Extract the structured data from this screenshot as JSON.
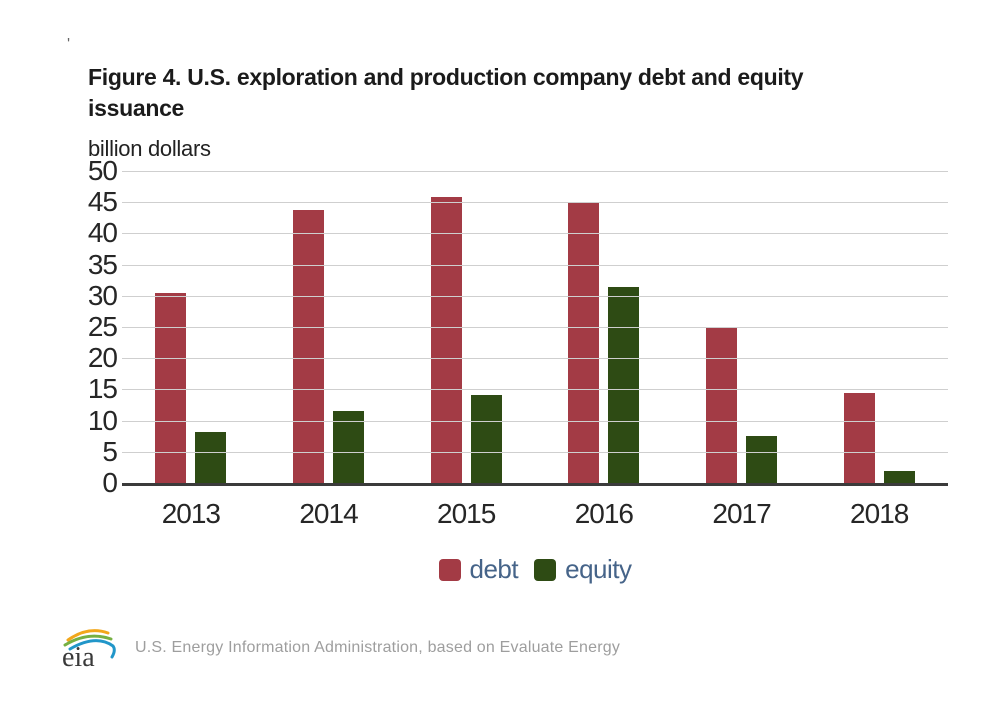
{
  "page": {
    "stray_mark": "'"
  },
  "header": {
    "title": "Figure 4. U.S. exploration and production company debt and equity issuance",
    "unit_label": "billion dollars"
  },
  "chart_data": {
    "type": "bar",
    "title": "Figure 4. U.S. exploration and production company debt and equity issuance",
    "ylabel": "billion dollars",
    "xlabel": "",
    "categories": [
      "2013",
      "2014",
      "2015",
      "2016",
      "2017",
      "2018"
    ],
    "series": [
      {
        "name": "debt",
        "color": "#A33B45",
        "values": [
          30.5,
          43.7,
          45.8,
          45.0,
          25.0,
          14.5
        ]
      },
      {
        "name": "equity",
        "color": "#2E4B14",
        "values": [
          8.2,
          11.5,
          14.1,
          31.4,
          7.5,
          2.0
        ]
      }
    ],
    "ylim": [
      0,
      50
    ],
    "ytick_step": 5,
    "grid": true,
    "legend_position": "bottom"
  },
  "legend": {
    "text_color": "#466489",
    "items": [
      {
        "label": "debt",
        "color": "#A33B45"
      },
      {
        "label": "equity",
        "color": "#2E4B14"
      }
    ]
  },
  "footer": {
    "logo_text": "eia",
    "source_text": "U.S. Energy Information Administration, based on Evaluate Energy"
  }
}
